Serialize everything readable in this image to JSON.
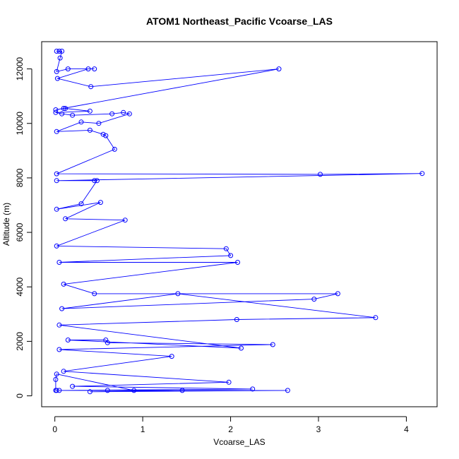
{
  "chart_data": {
    "type": "line",
    "title": "ATOM1 Northeast_Pacific Vcoarse_LAS",
    "xlabel": "Vcoarse_LAS",
    "ylabel": "Altitude (m)",
    "xlim": [
      -0.15,
      4.35
    ],
    "ylim": [
      -400,
      13000
    ],
    "xticks": [
      0,
      1,
      2,
      3,
      4
    ],
    "yticks": [
      0,
      2000,
      4000,
      6000,
      8000,
      10000,
      12000
    ],
    "grid": false,
    "color": "#0000ff",
    "markers": "open-circle",
    "series": [
      {
        "x": [
          0.02,
          0.05,
          0.08,
          0.06,
          0.02,
          0.15,
          0.45,
          0.38,
          0.03,
          0.41,
          2.55,
          0.01,
          0.1,
          0.12,
          0.4,
          0.01,
          0.08,
          0.2,
          0.65,
          0.78,
          0.85,
          0.5,
          0.3,
          0.02,
          0.4,
          0.55,
          0.58,
          0.68,
          0.02,
          3.02,
          4.18,
          0.02,
          0.45,
          0.48,
          0.3,
          0.02,
          0.52,
          0.12,
          0.8,
          0.02,
          1.95,
          2.0,
          0.05,
          2.08,
          0.1,
          0.45,
          3.22,
          2.95,
          0.08,
          1.4,
          3.65,
          2.07,
          0.05,
          2.12,
          0.15,
          0.58,
          0.6,
          2.48,
          0.05,
          1.33,
          0.1,
          1.98,
          0.2,
          2.25,
          0.05,
          2.65,
          0.4,
          1.45,
          0.6,
          0.9,
          0.02,
          0.01,
          0.01,
          0.02
        ],
        "y": [
          12650,
          12650,
          12650,
          12400,
          11900,
          12000,
          12000,
          12000,
          11650,
          11350,
          12000,
          10500,
          10550,
          10550,
          10450,
          10400,
          10350,
          10300,
          10350,
          10400,
          10350,
          10000,
          10050,
          9700,
          9750,
          9600,
          9550,
          9050,
          8150,
          8130,
          8160,
          7900,
          7900,
          7900,
          7050,
          6850,
          7100,
          6500,
          6450,
          5500,
          5400,
          5150,
          4900,
          4900,
          4100,
          3750,
          3750,
          3550,
          3200,
          3750,
          2870,
          2800,
          2600,
          1750,
          2050,
          2050,
          1950,
          1880,
          1700,
          1450,
          900,
          500,
          350,
          250,
          200,
          200,
          150,
          200,
          200,
          200,
          800,
          600,
          200,
          200
        ]
      }
    ]
  }
}
